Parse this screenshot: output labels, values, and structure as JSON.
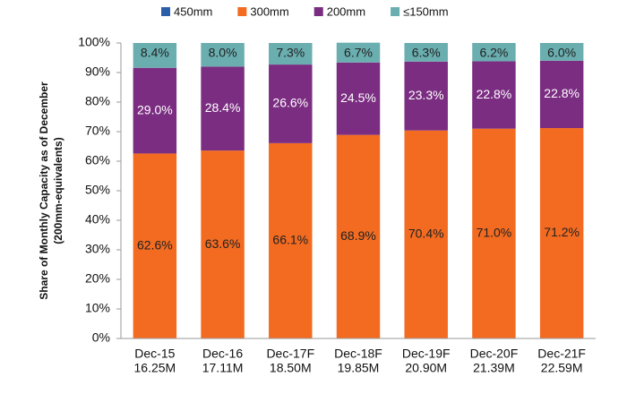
{
  "chart_data": {
    "type": "stacked_bar",
    "y_label": [
      "Share of Monthly Capacity as of December",
      "(200mm-equivalents)"
    ],
    "categories": [
      [
        "Dec-15",
        "16.25M"
      ],
      [
        "Dec-16",
        "17.11M"
      ],
      [
        "Dec-17F",
        "18.50M"
      ],
      [
        "Dec-18F",
        "19.85M"
      ],
      [
        "Dec-19F",
        "20.90M"
      ],
      [
        "Dec-20F",
        "21.39M"
      ],
      [
        "Dec-21F",
        "22.59M"
      ]
    ],
    "series": [
      {
        "name": "450mm",
        "color": "#2a5ea8",
        "values": [
          0,
          0,
          0,
          0,
          0,
          0,
          0
        ]
      },
      {
        "name": "300mm",
        "color": "#f26b21",
        "label_color": "#222222",
        "values": [
          62.6,
          63.6,
          66.1,
          68.9,
          70.4,
          71.0,
          71.2
        ],
        "value_labels": [
          "62.6%",
          "63.6%",
          "66.1%",
          "68.9%",
          "70.4%",
          "71.0%",
          "71.2%"
        ]
      },
      {
        "name": "200mm",
        "color": "#7b2d82",
        "label_color": "#ffffff",
        "values": [
          29.0,
          28.4,
          26.6,
          24.5,
          23.3,
          22.8,
          22.8
        ],
        "value_labels": [
          "29.0%",
          "28.4%",
          "26.6%",
          "24.5%",
          "23.3%",
          "22.8%",
          "22.8%"
        ]
      },
      {
        "name": "≤150mm",
        "color": "#6aaeb0",
        "label_color": "#222222",
        "values": [
          8.4,
          8.0,
          7.3,
          6.7,
          6.3,
          6.2,
          6.0
        ],
        "value_labels": [
          "8.4%",
          "8.0%",
          "7.3%",
          "6.7%",
          "6.3%",
          "6.2%",
          "6.0%"
        ]
      }
    ],
    "ylim": [
      0,
      100
    ],
    "yticks": [
      {
        "value": 0,
        "label": "0%"
      },
      {
        "value": 10,
        "label": "10%"
      },
      {
        "value": 20,
        "label": "20%"
      },
      {
        "value": 30,
        "label": "30%"
      },
      {
        "value": 40,
        "label": "40%"
      },
      {
        "value": 50,
        "label": "50%"
      },
      {
        "value": 60,
        "label": "60%"
      },
      {
        "value": 70,
        "label": "70%"
      },
      {
        "value": 80,
        "label": "80%"
      },
      {
        "value": 90,
        "label": "90%"
      },
      {
        "value": 100,
        "label": "100%"
      }
    ],
    "legend": "top",
    "grid": false
  }
}
